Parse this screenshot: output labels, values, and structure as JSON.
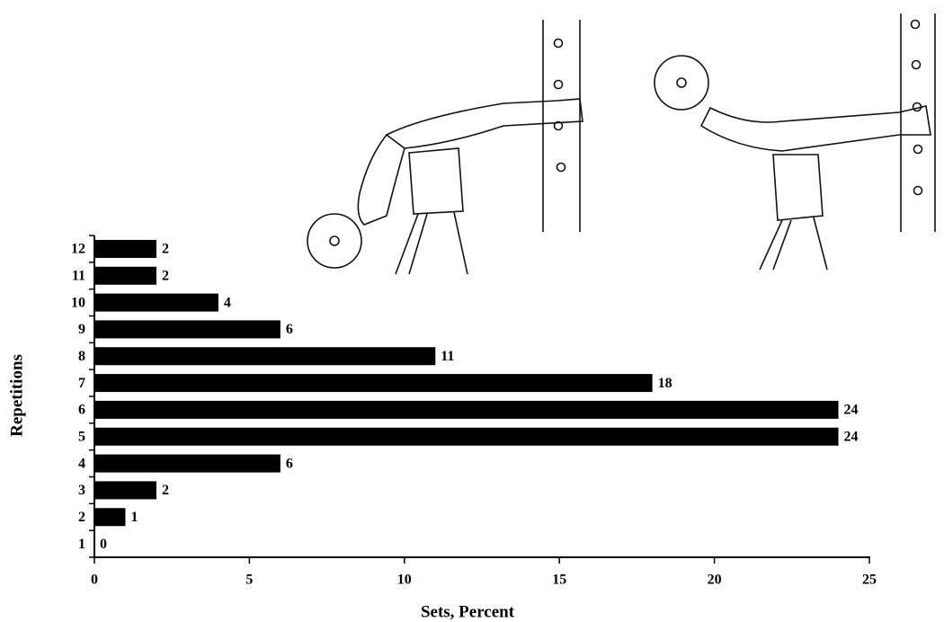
{
  "chart_data": {
    "type": "barh",
    "xlabel": "Sets, Percent",
    "ylabel": "Repetitions",
    "categories": [
      "1",
      "2",
      "3",
      "4",
      "5",
      "6",
      "7",
      "8",
      "9",
      "10",
      "11",
      "12"
    ],
    "values": [
      0,
      1,
      2,
      6,
      24,
      24,
      18,
      11,
      6,
      4,
      2,
      2
    ],
    "color": "#000000",
    "xlim": [
      0,
      25
    ],
    "xticks": [
      0,
      5,
      10,
      15,
      20,
      25
    ]
  }
}
